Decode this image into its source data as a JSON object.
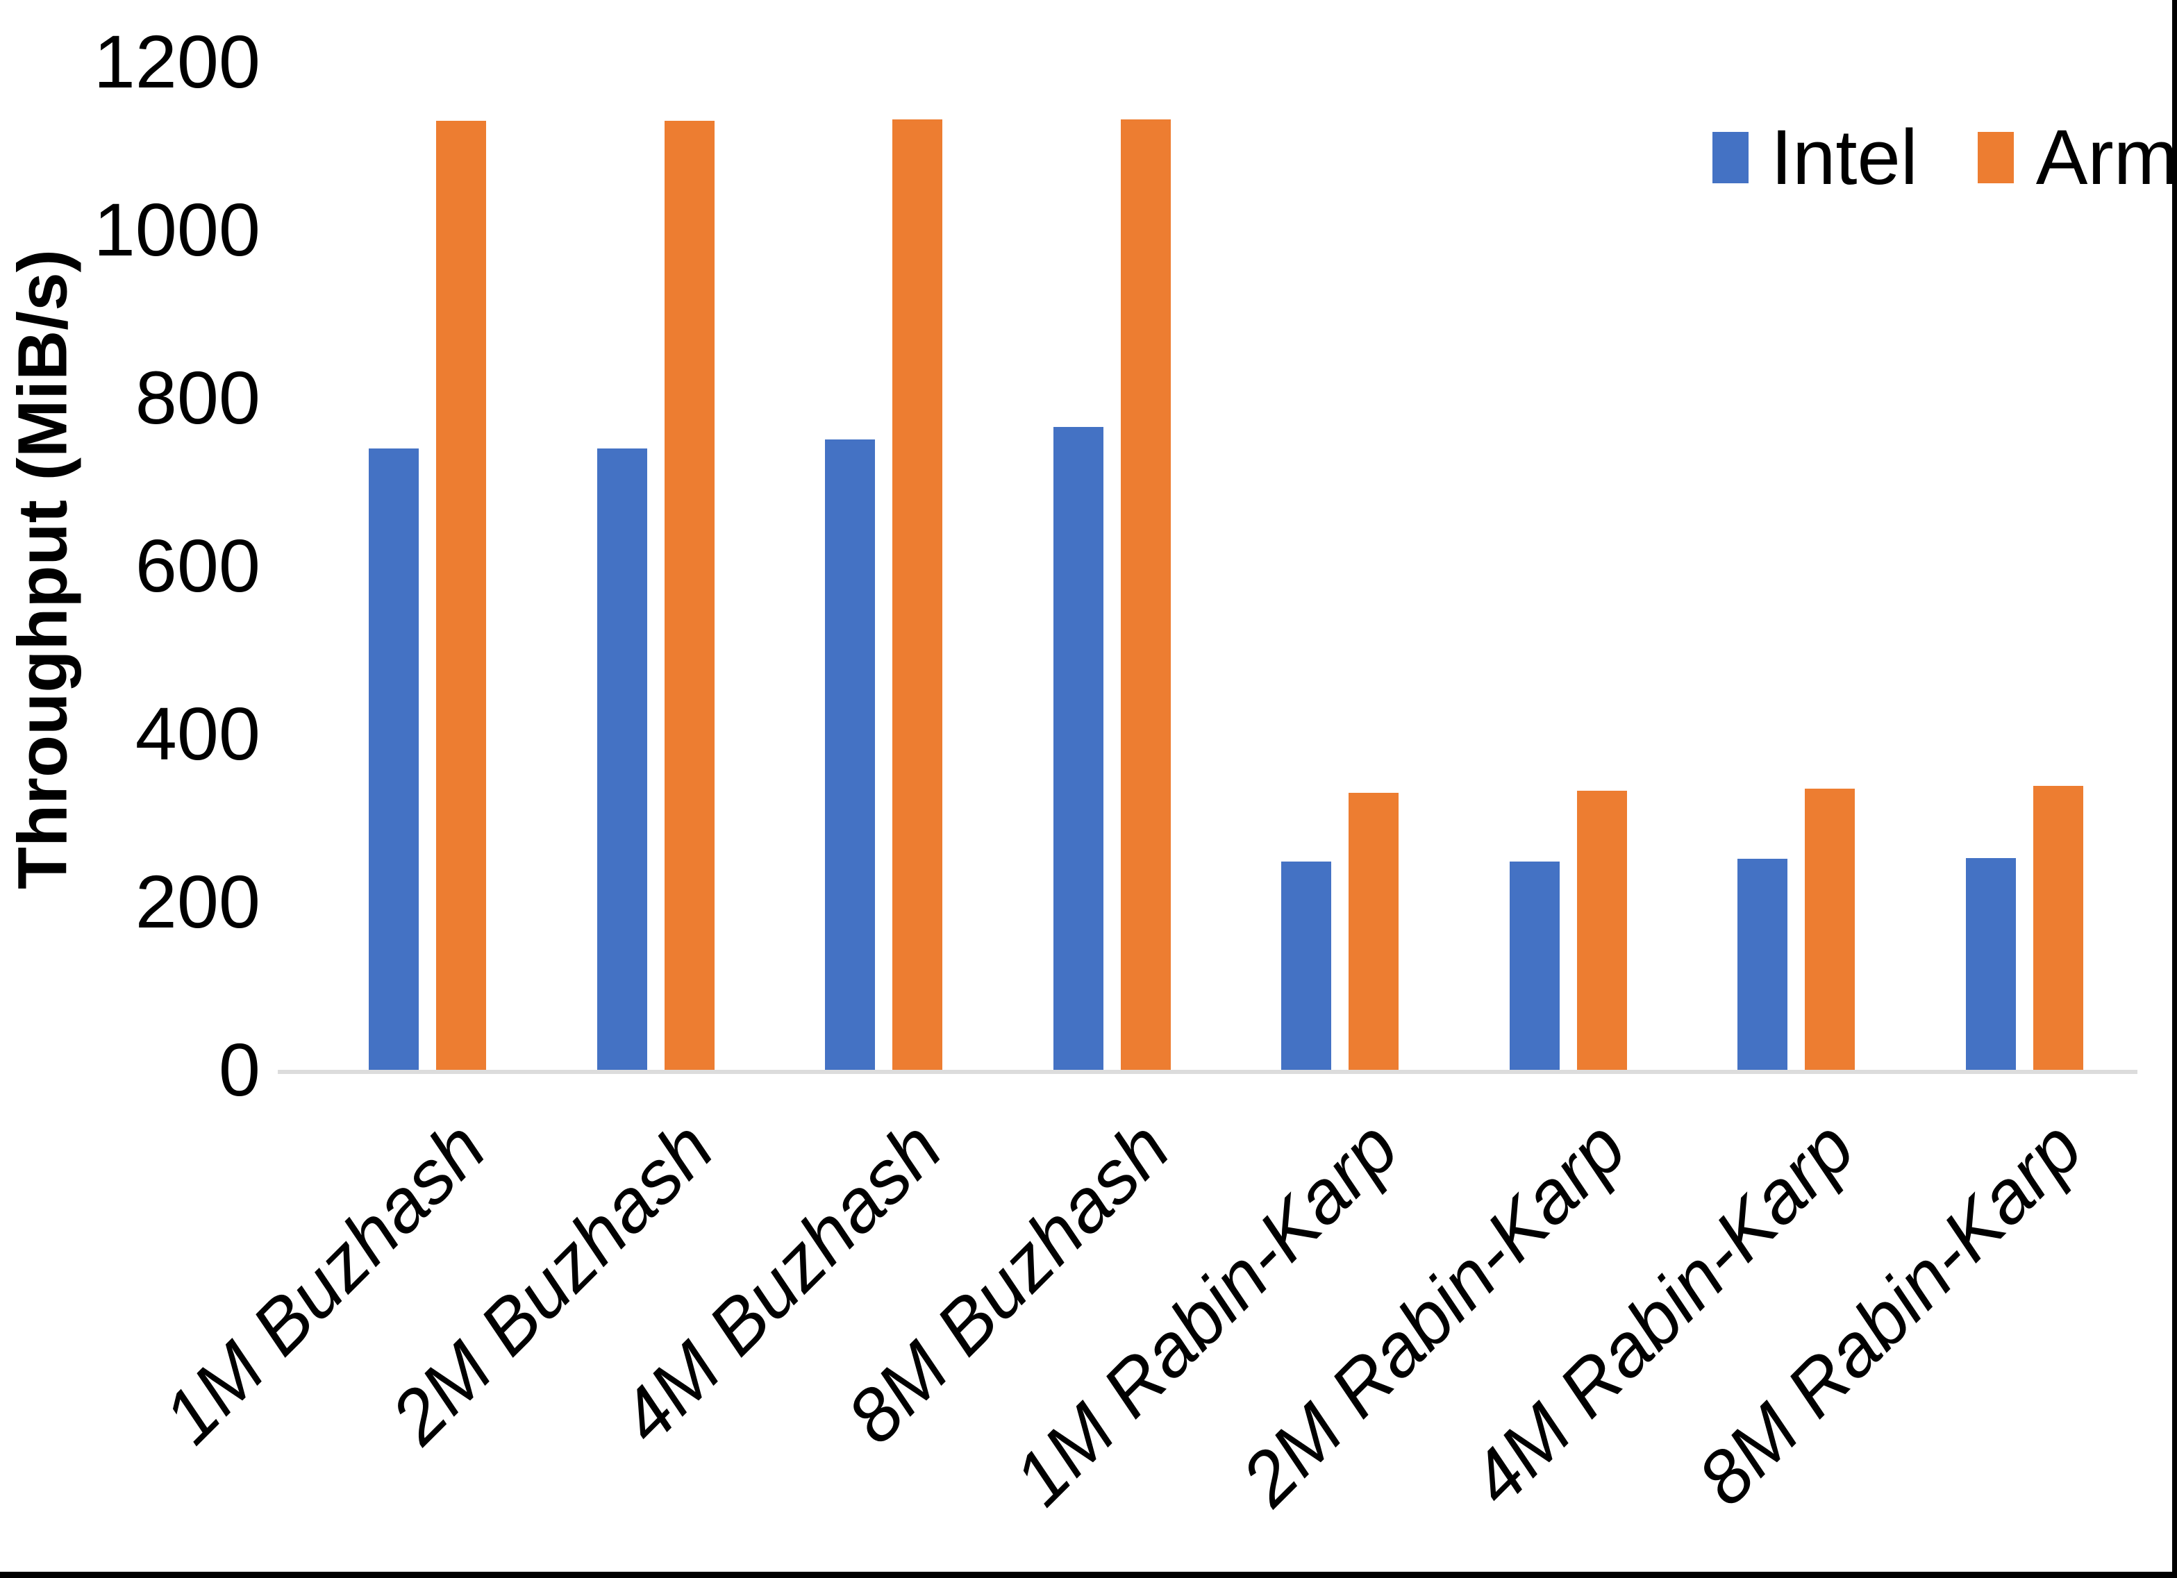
{
  "chart_data": {
    "type": "bar",
    "title": "",
    "xlabel": "",
    "ylabel": "Throughput (MiB/s)",
    "categories": [
      "1M Buzhash",
      "2M Buzhash",
      "4M Buzhash",
      "8M Buzhash",
      "1M Rabin-Karp",
      "2M Rabin-Karp",
      "4M Rabin-Karp",
      "8M Rabin-Karp"
    ],
    "series": [
      {
        "name": "Intel",
        "color": "#4472C4",
        "values": [
          740,
          740,
          750,
          765,
          248,
          248,
          251,
          252
        ]
      },
      {
        "name": "Arm",
        "color": "#ED7D31",
        "values": [
          1130,
          1130,
          1131,
          1131,
          330,
          332,
          335,
          338
        ]
      }
    ],
    "ylim": [
      0,
      1200
    ],
    "y_ticks": [
      0,
      200,
      400,
      600,
      800,
      1000,
      1200
    ],
    "grid": false,
    "legend_position": "top-right",
    "axis_line_color": "#DCDCDC",
    "text_color": "#000000",
    "background_color": "#FFFFFF"
  }
}
